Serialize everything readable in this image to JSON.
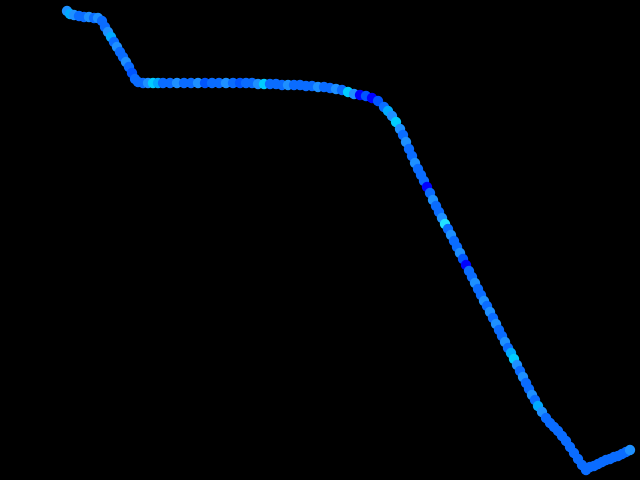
{
  "scene": {
    "background": "#000000",
    "palette": [
      "#0000ff",
      "#0055ff",
      "#0a6cff",
      "#1e90ff",
      "#00aaff",
      "#00ccff",
      "#22e0ff"
    ],
    "trail": [
      [
        67,
        11,
        3
      ],
      [
        70,
        14,
        4
      ],
      [
        74,
        15,
        3
      ],
      [
        79,
        16,
        2
      ],
      [
        84,
        17,
        2
      ],
      [
        89,
        17,
        3
      ],
      [
        94,
        18,
        2
      ],
      [
        98,
        18,
        3
      ],
      [
        102,
        21,
        2
      ],
      [
        105,
        27,
        2
      ],
      [
        108,
        32,
        3
      ],
      [
        111,
        37,
        4
      ],
      [
        114,
        42,
        2
      ],
      [
        117,
        47,
        3
      ],
      [
        120,
        52,
        2
      ],
      [
        123,
        57,
        2
      ],
      [
        126,
        62,
        3
      ],
      [
        129,
        67,
        2
      ],
      [
        132,
        73,
        1
      ],
      [
        135,
        79,
        2
      ],
      [
        138,
        82,
        2
      ],
      [
        143,
        83,
        2
      ],
      [
        148,
        83,
        3
      ],
      [
        153,
        83,
        5
      ],
      [
        158,
        83,
        4
      ],
      [
        163,
        83,
        2
      ],
      [
        170,
        83,
        2
      ],
      [
        177,
        83,
        3
      ],
      [
        184,
        83,
        2
      ],
      [
        191,
        83,
        2
      ],
      [
        198,
        83,
        3
      ],
      [
        205,
        83,
        1
      ],
      [
        212,
        83,
        2
      ],
      [
        219,
        83,
        2
      ],
      [
        226,
        83,
        3
      ],
      [
        233,
        83,
        2
      ],
      [
        240,
        83,
        1
      ],
      [
        246,
        83,
        2
      ],
      [
        252,
        83,
        2
      ],
      [
        258,
        84,
        3
      ],
      [
        264,
        84,
        5
      ],
      [
        270,
        84,
        2
      ],
      [
        276,
        84,
        2
      ],
      [
        282,
        85,
        2
      ],
      [
        288,
        85,
        3
      ],
      [
        294,
        85,
        2
      ],
      [
        300,
        85,
        2
      ],
      [
        306,
        86,
        2
      ],
      [
        312,
        86,
        2
      ],
      [
        318,
        87,
        3
      ],
      [
        324,
        87,
        2
      ],
      [
        330,
        88,
        2
      ],
      [
        336,
        89,
        3
      ],
      [
        342,
        90,
        2
      ],
      [
        348,
        92,
        5
      ],
      [
        354,
        94,
        3
      ],
      [
        360,
        95,
        0
      ],
      [
        366,
        96,
        1
      ],
      [
        372,
        98,
        0
      ],
      [
        378,
        101,
        1
      ],
      [
        384,
        107,
        2
      ],
      [
        388,
        111,
        4
      ],
      [
        392,
        116,
        3
      ],
      [
        396,
        122,
        5
      ],
      [
        400,
        129,
        3
      ],
      [
        403,
        135,
        2
      ],
      [
        406,
        142,
        3
      ],
      [
        409,
        149,
        2
      ],
      [
        412,
        156,
        2
      ],
      [
        415,
        163,
        3
      ],
      [
        418,
        169,
        2
      ],
      [
        421,
        175,
        2
      ],
      [
        424,
        181,
        2
      ],
      [
        427,
        187,
        0
      ],
      [
        430,
        193,
        2
      ],
      [
        433,
        200,
        3
      ],
      [
        436,
        206,
        2
      ],
      [
        439,
        212,
        2
      ],
      [
        442,
        218,
        3
      ],
      [
        445,
        224,
        6
      ],
      [
        448,
        229,
        2
      ],
      [
        451,
        235,
        3
      ],
      [
        454,
        241,
        2
      ],
      [
        457,
        247,
        2
      ],
      [
        460,
        253,
        3
      ],
      [
        463,
        259,
        1
      ],
      [
        466,
        265,
        0
      ],
      [
        469,
        271,
        2
      ],
      [
        472,
        277,
        2
      ],
      [
        475,
        283,
        3
      ],
      [
        478,
        289,
        2
      ],
      [
        481,
        295,
        2
      ],
      [
        484,
        301,
        3
      ],
      [
        487,
        306,
        2
      ],
      [
        490,
        312,
        3
      ],
      [
        493,
        318,
        2
      ],
      [
        496,
        324,
        3
      ],
      [
        499,
        330,
        2
      ],
      [
        502,
        336,
        2
      ],
      [
        505,
        342,
        3
      ],
      [
        508,
        348,
        2
      ],
      [
        511,
        353,
        4
      ],
      [
        514,
        359,
        5
      ],
      [
        517,
        365,
        3
      ],
      [
        520,
        371,
        2
      ],
      [
        523,
        377,
        3
      ],
      [
        526,
        383,
        2
      ],
      [
        529,
        389,
        2
      ],
      [
        532,
        395,
        3
      ],
      [
        535,
        400,
        2
      ],
      [
        538,
        406,
        4
      ],
      [
        542,
        412,
        3
      ],
      [
        546,
        418,
        2
      ],
      [
        550,
        423,
        2
      ],
      [
        554,
        427,
        2
      ],
      [
        558,
        431,
        2
      ],
      [
        562,
        436,
        2
      ],
      [
        566,
        441,
        2
      ],
      [
        570,
        447,
        2
      ],
      [
        574,
        453,
        2
      ],
      [
        578,
        459,
        2
      ],
      [
        582,
        465,
        2
      ],
      [
        586,
        470,
        2
      ],
      [
        590,
        467,
        2
      ],
      [
        594,
        466,
        2
      ],
      [
        598,
        464,
        2
      ],
      [
        602,
        462,
        2
      ],
      [
        606,
        460,
        2
      ],
      [
        610,
        459,
        2
      ],
      [
        614,
        457,
        2
      ],
      [
        618,
        456,
        2
      ],
      [
        622,
        454,
        2
      ],
      [
        626,
        452,
        2
      ],
      [
        630,
        450,
        3
      ]
    ]
  }
}
